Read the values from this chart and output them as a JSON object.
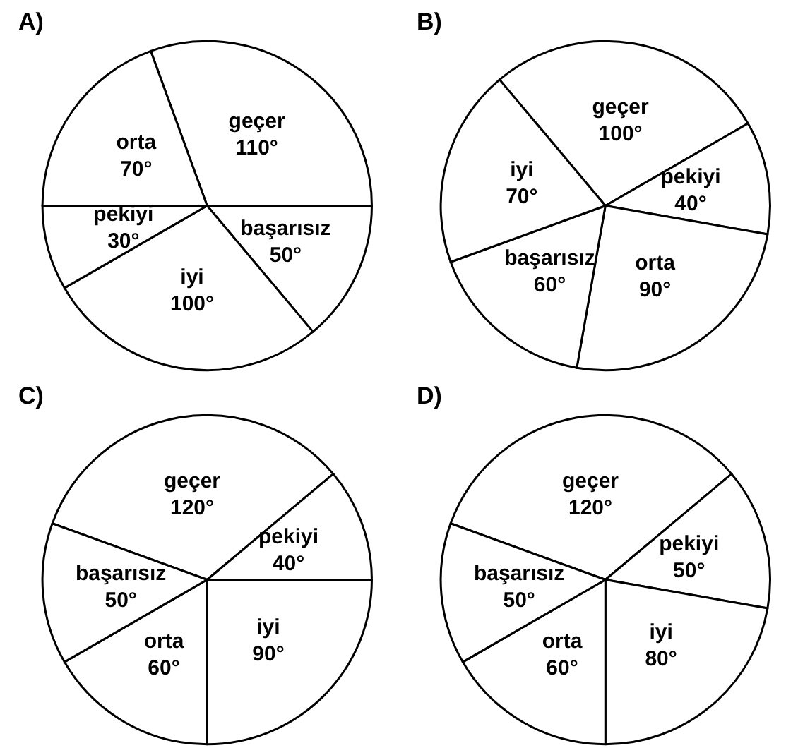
{
  "chart_data": [
    {
      "type": "pie",
      "title": "A)",
      "categories": [
        "geçer",
        "başarısız",
        "iyi",
        "pekiyi",
        "orta"
      ],
      "values": [
        110,
        50,
        100,
        30,
        70
      ],
      "value_labels": [
        "110°",
        "50°",
        "100°",
        "30°",
        "70°"
      ],
      "colors": [
        "#ffffff",
        "#ffffff",
        "#ffffff",
        "#ffffff",
        "#ffffff"
      ],
      "legend": false
    },
    {
      "type": "pie",
      "title": "B)",
      "categories": [
        "geçer",
        "pekiyi",
        "orta",
        "başarısız",
        "iyi"
      ],
      "values": [
        100,
        40,
        90,
        60,
        70
      ],
      "value_labels": [
        "100°",
        "40°",
        "90°",
        "60°",
        "70°"
      ],
      "colors": [
        "#ffffff",
        "#ffffff",
        "#ffffff",
        "#ffffff",
        "#ffffff"
      ],
      "legend": false
    },
    {
      "type": "pie",
      "title": "C)",
      "categories": [
        "geçer",
        "pekiyi",
        "iyi",
        "orta",
        "başarısız"
      ],
      "values": [
        120,
        40,
        90,
        60,
        50
      ],
      "value_labels": [
        "120°",
        "40°",
        "90°",
        "60°",
        "50°"
      ],
      "colors": [
        "#ffffff",
        "#ffffff",
        "#ffffff",
        "#ffffff",
        "#ffffff"
      ],
      "legend": false
    },
    {
      "type": "pie",
      "title": "D)",
      "categories": [
        "geçer",
        "pekiyi",
        "iyi",
        "orta",
        "başarısız"
      ],
      "values": [
        120,
        50,
        80,
        60,
        50
      ],
      "value_labels": [
        "120°",
        "50°",
        "80°",
        "60°",
        "50°"
      ],
      "colors": [
        "#ffffff",
        "#ffffff",
        "#ffffff",
        "#ffffff",
        "#ffffff"
      ],
      "legend": false
    }
  ]
}
